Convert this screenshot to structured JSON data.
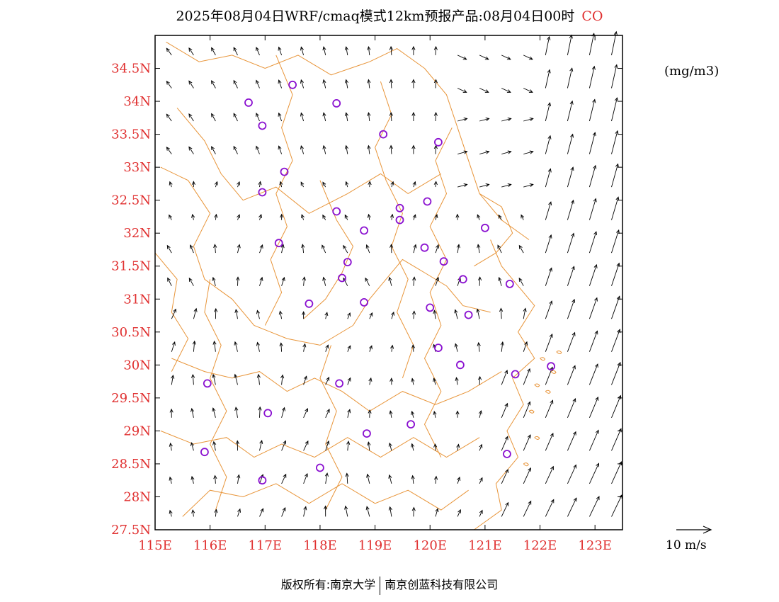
{
  "title": {
    "main": "2025年08月04日WRF/cmaq模式12km预报产品:08月04日00时",
    "species": "CO",
    "species_color": "#e03030"
  },
  "units": "(mg/m3)",
  "reference_vector": {
    "label": "10  m/s",
    "speed": 10
  },
  "copyright": {
    "left": "版权所有:南京大学",
    "right": "南京创蓝科技有限公司"
  },
  "colors": {
    "boundary": "#e8953a",
    "tick_label": "#e03030",
    "station": "#8a10d0",
    "vector": "#000000",
    "frame": "#000000"
  },
  "chart_data": {
    "type": "map",
    "x_axis": {
      "ticks": [
        "115E",
        "116E",
        "117E",
        "118E",
        "119E",
        "120E",
        "121E",
        "122E",
        "123E"
      ],
      "range": [
        115,
        123.5
      ]
    },
    "y_axis": {
      "ticks": [
        "27.5N",
        "28N",
        "28.5N",
        "29N",
        "29.5N",
        "30N",
        "30.5N",
        "31N",
        "31.5N",
        "32N",
        "32.5N",
        "33N",
        "33.5N",
        "34N",
        "34.5N"
      ],
      "range": [
        27.5,
        35.0
      ]
    },
    "stations": [
      [
        117.5,
        34.25
      ],
      [
        116.7,
        33.98
      ],
      [
        118.3,
        33.97
      ],
      [
        116.95,
        33.63
      ],
      [
        119.15,
        33.5
      ],
      [
        120.15,
        33.38
      ],
      [
        117.35,
        32.93
      ],
      [
        116.95,
        32.62
      ],
      [
        118.3,
        32.33
      ],
      [
        119.45,
        32.38
      ],
      [
        119.45,
        32.2
      ],
      [
        119.95,
        32.48
      ],
      [
        118.8,
        32.04
      ],
      [
        117.25,
        31.85
      ],
      [
        121.0,
        32.08
      ],
      [
        119.9,
        31.78
      ],
      [
        120.25,
        31.57
      ],
      [
        118.5,
        31.56
      ],
      [
        118.4,
        31.32
      ],
      [
        120.6,
        31.3
      ],
      [
        121.45,
        31.23
      ],
      [
        117.8,
        30.93
      ],
      [
        118.8,
        30.95
      ],
      [
        120.0,
        30.87
      ],
      [
        120.7,
        30.76
      ],
      [
        120.15,
        30.26
      ],
      [
        115.95,
        29.72
      ],
      [
        118.35,
        29.72
      ],
      [
        120.55,
        30.0
      ],
      [
        121.55,
        29.86
      ],
      [
        122.2,
        29.98
      ],
      [
        117.05,
        29.27
      ],
      [
        118.85,
        28.96
      ],
      [
        119.65,
        29.1
      ],
      [
        115.9,
        28.68
      ],
      [
        118.0,
        28.44
      ],
      [
        116.95,
        28.25
      ],
      [
        121.4,
        28.65
      ]
    ]
  }
}
